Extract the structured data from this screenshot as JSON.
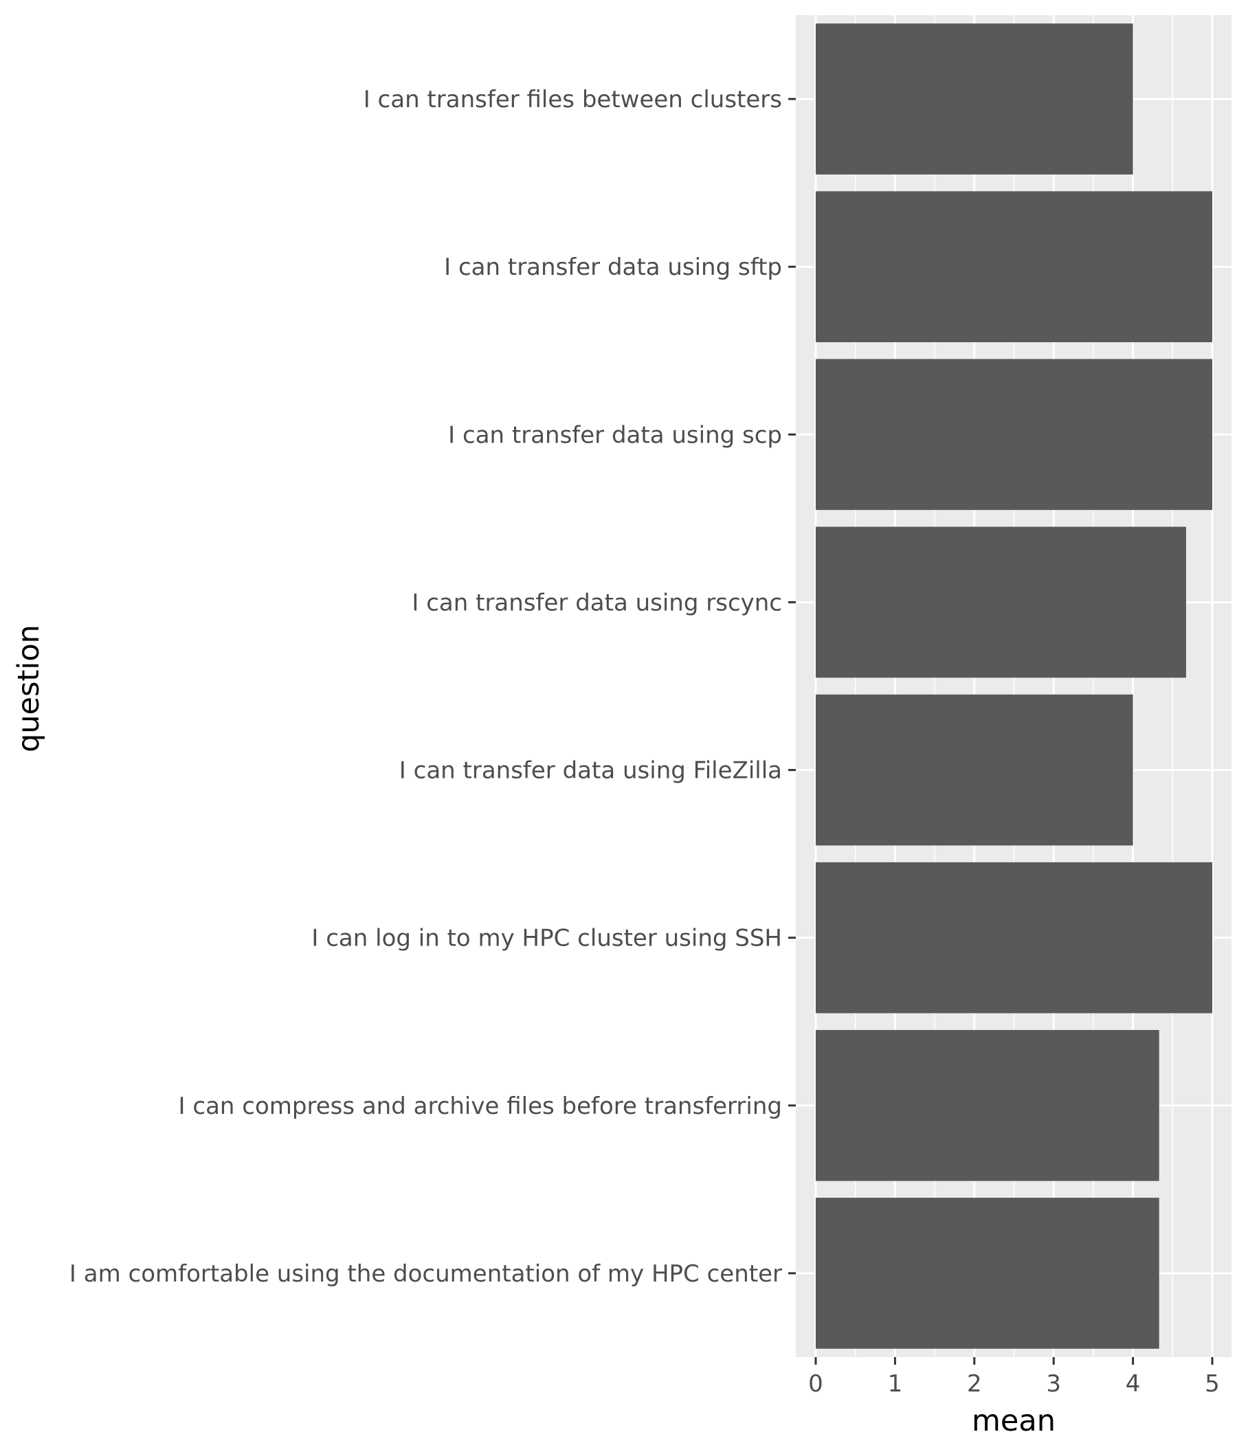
{
  "chart_data": {
    "type": "bar",
    "orientation": "horizontal",
    "categories": [
      "I can transfer files between clusters",
      "I can transfer data using sftp",
      "I can transfer data using scp",
      "I can transfer data using rscync",
      "I can transfer data using FileZilla",
      "I can log in to my HPC cluster using SSH",
      "I can compress and archive files before transferring",
      "I am comfortable using the documentation of my HPC center"
    ],
    "values": [
      4.0,
      5.0,
      5.0,
      4.67,
      4.0,
      5.0,
      4.33,
      4.33
    ],
    "xlabel": "mean",
    "ylabel": "question",
    "xlim": [
      0,
      5
    ],
    "xticks": [
      "0",
      "1",
      "2",
      "3",
      "4",
      "5"
    ],
    "grid": true,
    "colors": {
      "bar": "#595959",
      "panel": "#ebebeb",
      "grid": "#ffffff",
      "tick": "#333333",
      "text": "#4d4d4d"
    }
  }
}
